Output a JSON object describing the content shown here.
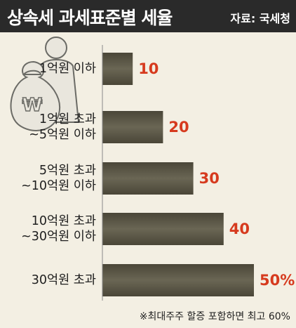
{
  "header": {
    "title": "상속세 과세표준별 세율",
    "source": "자료: 국세청"
  },
  "footnote": "※최대주주 할증 포함하면 최고 60%",
  "colors": {
    "bar": "#4a4638",
    "bar_highlight": "#6a6654",
    "value_text": "#d63a1e",
    "background": "#f3efe3",
    "header_bg": "#2a2a2a"
  },
  "icon": "money-bag-person-icon",
  "chart_data": {
    "type": "bar",
    "orientation": "horizontal",
    "categories": [
      [
        "1억원 이하"
      ],
      [
        "1억원 초과",
        "~5억원 이하"
      ],
      [
        "5억원 초과",
        "~10억원 이하"
      ],
      [
        "10억원 초과",
        "~30억원 이하"
      ],
      [
        "30억원 초과"
      ]
    ],
    "values": [
      10,
      20,
      30,
      40,
      50
    ],
    "value_labels": [
      "10",
      "20",
      "30",
      "40",
      "50%"
    ],
    "xlim": [
      0,
      50
    ]
  }
}
